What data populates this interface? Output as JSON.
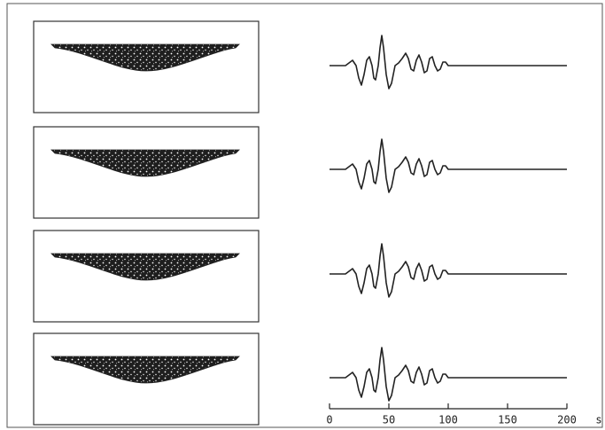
{
  "time_axis": {
    "xlim": [
      0,
      200
    ],
    "ticks": [
      0,
      50,
      100,
      150,
      200
    ],
    "unit": "s"
  }
}
